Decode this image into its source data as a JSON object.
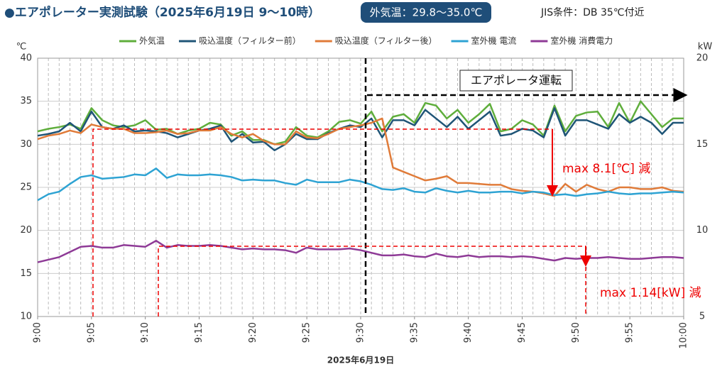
{
  "chart_data": {
    "type": "line",
    "title": "●エアポレーター実測試験（2025年6月19日 9～10時）",
    "subtitle": "外気温：29.8～35.0℃",
    "note": "JIS条件：DB 35℃付近",
    "ylabel": "℃",
    "y2label": "kW",
    "xlabel": "2025年6月19日",
    "annotations": [
      "エアポレータ運転",
      "max 8.1[℃] 減",
      "max 1.14[kW] 減"
    ],
    "x": [
      0,
      1,
      2,
      3,
      4,
      5,
      6,
      7,
      8,
      9,
      10,
      11,
      12,
      13,
      14,
      15,
      16,
      17,
      18,
      19,
      20,
      21,
      22,
      23,
      24,
      25,
      26,
      27,
      28,
      29,
      30,
      31,
      32,
      33,
      34,
      35,
      36,
      37,
      38,
      39,
      40,
      41,
      42,
      43,
      44,
      45,
      46,
      47,
      48,
      49,
      50,
      51,
      52,
      53,
      54,
      55,
      56,
      57,
      58,
      59,
      60
    ],
    "xlim": [
      0,
      60
    ],
    "xticks": [
      {
        "value": 0,
        "label": "9:00"
      },
      {
        "value": 5,
        "label": "9:05"
      },
      {
        "value": 10,
        "label": "9:10"
      },
      {
        "value": 15,
        "label": "9:15"
      },
      {
        "value": 20,
        "label": "9:20"
      },
      {
        "value": 25,
        "label": "9:25"
      },
      {
        "value": 30,
        "label": "9:30"
      },
      {
        "value": 35,
        "label": "9:35"
      },
      {
        "value": 40,
        "label": "9:40"
      },
      {
        "value": 45,
        "label": "9:45"
      },
      {
        "value": 50,
        "label": "9:50"
      },
      {
        "value": 55,
        "label": "9:55"
      },
      {
        "value": 60,
        "label": "10:00"
      }
    ],
    "ylim": [
      10,
      40
    ],
    "yticks": [
      10,
      15,
      20,
      25,
      30,
      35,
      40
    ],
    "y2lim": [
      5,
      20
    ],
    "y2ticks": [
      5,
      10,
      15,
      20
    ],
    "grid": true,
    "legend": "top",
    "series": [
      {
        "name": "外気温",
        "color": "#5fae3c",
        "values": [
          31.5,
          31.8,
          32.0,
          32.3,
          31.8,
          34.2,
          32.8,
          32.2,
          32.0,
          32.2,
          32.8,
          31.7,
          31.8,
          31.2,
          31.6,
          31.8,
          32.5,
          32.3,
          31.0,
          31.5,
          30.5,
          30.5,
          30.0,
          30.3,
          32.0,
          31.0,
          30.8,
          31.5,
          32.6,
          32.8,
          32.4,
          33.8,
          31.5,
          33.2,
          33.5,
          32.5,
          34.8,
          34.5,
          33.0,
          34.0,
          32.5,
          33.5,
          34.7,
          31.5,
          31.8,
          32.8,
          32.3,
          31.0,
          34.5,
          31.5,
          33.3,
          33.7,
          33.8,
          32.0,
          34.8,
          32.5,
          35.0,
          33.5,
          32.0,
          33.0,
          33.0
        ]
      },
      {
        "name": "吸込温度（フィルター前）",
        "color": "#1f5577",
        "values": [
          31.0,
          31.2,
          31.5,
          32.5,
          31.5,
          33.8,
          32.0,
          31.8,
          32.2,
          31.5,
          31.6,
          31.5,
          31.3,
          30.8,
          31.2,
          31.6,
          31.8,
          32.2,
          30.3,
          31.2,
          30.2,
          30.3,
          29.3,
          30.0,
          31.2,
          30.6,
          30.6,
          31.3,
          31.8,
          32.2,
          32.0,
          33.0,
          30.8,
          32.8,
          32.8,
          32.2,
          34.0,
          33.0,
          32.0,
          33.2,
          31.8,
          32.8,
          33.8,
          31.0,
          31.2,
          31.8,
          31.6,
          30.8,
          34.2,
          31.0,
          32.8,
          32.8,
          32.3,
          31.8,
          33.5,
          32.5,
          33.2,
          32.5,
          31.2,
          32.5,
          32.5
        ]
      },
      {
        "name": "吸込温度（フィルター後）",
        "color": "#e07b39",
        "values": [
          30.6,
          31.0,
          31.2,
          31.6,
          31.3,
          32.3,
          32.0,
          31.8,
          31.8,
          31.3,
          31.3,
          31.4,
          31.6,
          31.2,
          31.3,
          31.6,
          31.6,
          32.0,
          31.2,
          30.8,
          31.2,
          30.4,
          30.0,
          30.0,
          31.5,
          30.8,
          30.7,
          31.2,
          31.8,
          32.0,
          32.2,
          32.5,
          33.0,
          27.3,
          26.8,
          26.3,
          25.8,
          26.0,
          26.3,
          25.5,
          25.5,
          25.4,
          25.3,
          25.3,
          24.8,
          24.6,
          24.5,
          24.3,
          24.0,
          25.4,
          24.5,
          25.3,
          24.8,
          24.5,
          25.0,
          25.0,
          24.8,
          24.8,
          25.0,
          24.6,
          24.5
        ]
      },
      {
        "name": "室外機 電流",
        "color": "#2ea3d3",
        "values": [
          23.5,
          24.2,
          24.5,
          25.4,
          26.2,
          26.4,
          26.0,
          26.1,
          26.2,
          26.5,
          26.4,
          27.2,
          26.1,
          26.5,
          26.4,
          26.4,
          26.5,
          26.4,
          26.2,
          25.8,
          25.9,
          25.8,
          25.8,
          25.5,
          25.3,
          25.9,
          25.6,
          25.6,
          25.6,
          25.9,
          25.7,
          25.3,
          24.8,
          24.7,
          24.9,
          24.5,
          24.4,
          24.9,
          24.6,
          24.4,
          24.6,
          24.4,
          24.4,
          24.5,
          24.5,
          24.3,
          24.5,
          24.4,
          24.1,
          24.2,
          24.0,
          24.2,
          24.3,
          24.5,
          24.3,
          24.2,
          24.3,
          24.3,
          24.4,
          24.5,
          24.4
        ]
      },
      {
        "name": "室外機 消費電力",
        "color": "#8e3a96",
        "axis": "y2",
        "values": [
          8.15,
          8.3,
          8.45,
          8.75,
          9.05,
          9.1,
          9.0,
          9.0,
          9.15,
          9.1,
          9.05,
          9.4,
          9.0,
          9.15,
          9.1,
          9.1,
          9.15,
          9.1,
          9.0,
          8.9,
          8.95,
          8.9,
          8.9,
          8.85,
          8.7,
          9.0,
          8.9,
          8.9,
          8.9,
          8.95,
          8.85,
          8.7,
          8.55,
          8.55,
          8.6,
          8.5,
          8.45,
          8.65,
          8.5,
          8.45,
          8.55,
          8.45,
          8.5,
          8.5,
          8.45,
          8.5,
          8.45,
          8.35,
          8.25,
          8.4,
          8.35,
          8.4,
          8.4,
          8.45,
          8.4,
          8.35,
          8.35,
          8.4,
          8.45,
          8.45,
          8.4
        ]
      }
    ]
  }
}
